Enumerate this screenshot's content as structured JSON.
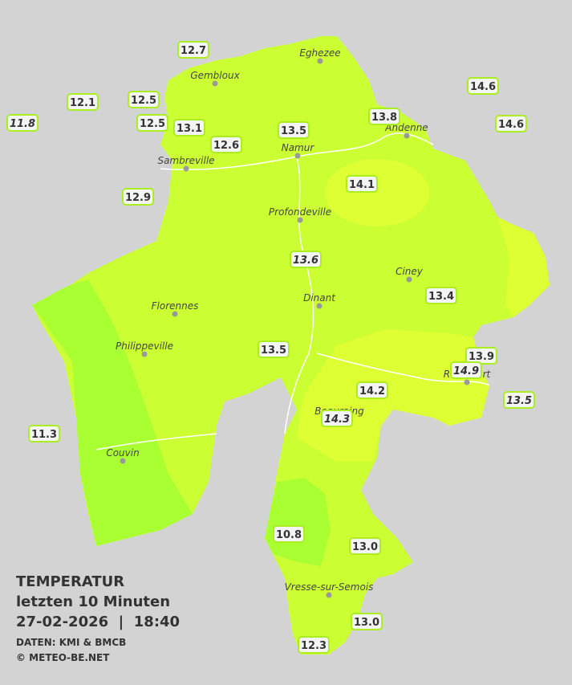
{
  "title": {
    "line1": "TEMPERATUR",
    "line2": "letzten 10 Minuten",
    "line3": "27-02-2026  |  18:40",
    "source": "DATEN: KMI & BMCB",
    "copyright": "© METEO-BE.NET"
  },
  "places": [
    {
      "name": "Eghezee"
    },
    {
      "name": "Gembloux"
    },
    {
      "name": "Andenne"
    },
    {
      "name": "Namur"
    },
    {
      "name": "Sambreville"
    },
    {
      "name": "Profondeville"
    },
    {
      "name": "Ciney"
    },
    {
      "name": "Dinant"
    },
    {
      "name": "Florennes"
    },
    {
      "name": "Philippeville"
    },
    {
      "name": "Rochefort"
    },
    {
      "name": "Beauraing"
    },
    {
      "name": "Couvin"
    },
    {
      "name": "Vresse-sur-Semois"
    }
  ],
  "stations": [
    {
      "label": "12.7",
      "italic": false
    },
    {
      "label": "12.1",
      "italic": false
    },
    {
      "label": "11.8",
      "italic": true
    },
    {
      "label": "12.5",
      "italic": false
    },
    {
      "label": "12.5",
      "italic": false
    },
    {
      "label": "13.1",
      "italic": false
    },
    {
      "label": "12.6",
      "italic": false
    },
    {
      "label": "13.5",
      "italic": false
    },
    {
      "label": "13.8",
      "italic": false
    },
    {
      "label": "14.6",
      "italic": false
    },
    {
      "label": "14.6",
      "italic": false
    },
    {
      "label": "12.9",
      "italic": false
    },
    {
      "label": "14.1",
      "italic": false
    },
    {
      "label": "13.6",
      "italic": true
    },
    {
      "label": "13.4",
      "italic": false
    },
    {
      "label": "13.5",
      "italic": false
    },
    {
      "label": "13.9",
      "italic": false
    },
    {
      "label": "14.9",
      "italic": true
    },
    {
      "label": "14.2",
      "italic": false
    },
    {
      "label": "14.3",
      "italic": true
    },
    {
      "label": "13.5",
      "italic": true
    },
    {
      "label": "11.3",
      "italic": false
    },
    {
      "label": "10.8",
      "italic": false
    },
    {
      "label": "13.0",
      "italic": false
    },
    {
      "label": "13.0",
      "italic": false
    },
    {
      "label": "12.3",
      "italic": false
    }
  ]
}
